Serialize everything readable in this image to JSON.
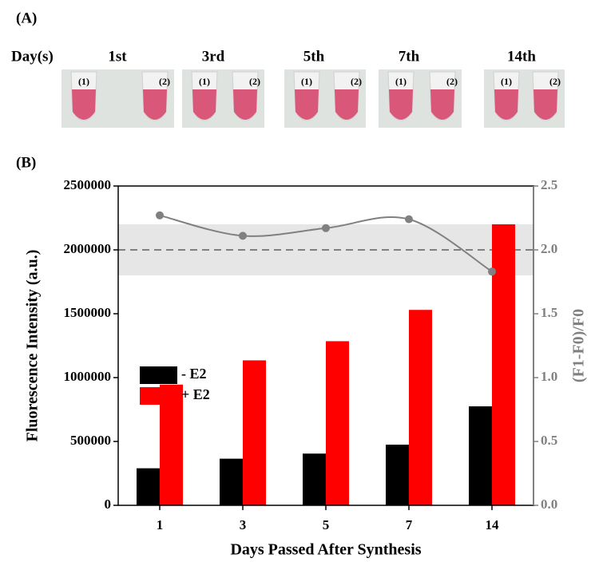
{
  "panel_a": {
    "label": "(A)",
    "row_label": "Day(s)",
    "days": [
      "1st",
      "3rd",
      "5th",
      "7th",
      "14th"
    ],
    "tube_labels": [
      "(1)",
      "(2)"
    ]
  },
  "chart_data": {
    "type": "bar",
    "panel_label": "(B)",
    "x_label": "Days Passed After Synthesis",
    "y_label": "Fluorescence Intensity (a.u.)",
    "y2_label": "(F1-F0)/F0",
    "categories": [
      "1",
      "3",
      "5",
      "7",
      "14"
    ],
    "ylim": [
      0,
      2500000
    ],
    "yticks": [
      0,
      500000,
      1000000,
      1500000,
      2000000,
      2500000
    ],
    "y2lim": [
      0,
      2.5
    ],
    "y2ticks": [
      {
        "value": 0,
        "label": "0.0"
      },
      0.5,
      {
        "value": 1,
        "label": "1.0"
      },
      1.5,
      {
        "value": 2,
        "label": "2.0"
      },
      2.5
    ],
    "series": [
      {
        "name": "- E2",
        "color": "#000000",
        "values": [
          290000,
          365000,
          405000,
          475000,
          775000
        ]
      },
      {
        "name": "+ E2",
        "color": "#ff0000",
        "values": [
          945000,
          1135000,
          1285000,
          1530000,
          2200000
        ]
      },
      {
        "type": "line",
        "axis": "y2",
        "color": "#808080",
        "values": [
          2.27,
          2.11,
          2.17,
          2.24,
          1.83
        ]
      }
    ],
    "reference_line": 2.0,
    "band": [
      1.8,
      2.2
    ],
    "band_color": "#e6e6e6",
    "legend": "left"
  }
}
